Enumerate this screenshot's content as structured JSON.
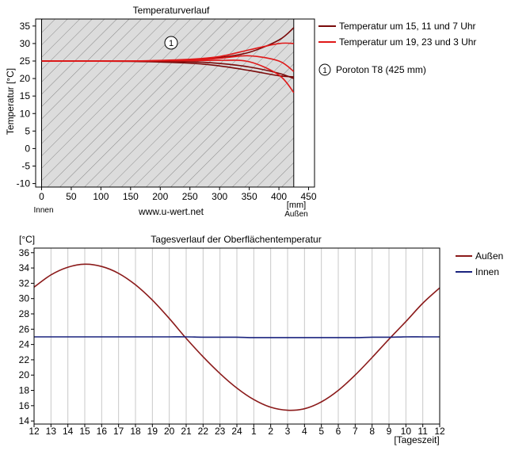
{
  "chart_data": [
    {
      "type": "line",
      "title": "Temperaturverlauf",
      "ylabel": "Temperatur [°C]",
      "x_unit": "[mm]",
      "x_ticks": [
        0,
        50,
        100,
        150,
        200,
        250,
        300,
        350,
        400,
        450
      ],
      "y_ticks": [
        35,
        30,
        25,
        20,
        15,
        10,
        5,
        0,
        -5,
        -10
      ],
      "xlim": [
        -10,
        460
      ],
      "ylim": [
        -11,
        37
      ],
      "inside_label": "Innen",
      "outside_label": "Außen",
      "watermark": "www.u-wert.net",
      "layer": {
        "number": "1",
        "name": "Poroton T8 (425 mm)",
        "from_mm": 0,
        "to_mm": 425
      },
      "legend_placement": "right",
      "series": [
        {
          "name": "Temperatur um 15, 11 und 7 Uhr",
          "color": "#7a0a0a",
          "curves": [
            {
              "x": [
                0,
                150,
                250,
                300,
                350,
                400,
                425
              ],
              "y": [
                25,
                25,
                25.3,
                26,
                27.5,
                31,
                34.5
              ]
            },
            {
              "x": [
                0,
                150,
                250,
                300,
                350,
                400,
                425
              ],
              "y": [
                25,
                24.9,
                24.4,
                23.6,
                22.3,
                20.8,
                20.5
              ]
            },
            {
              "x": [
                0,
                150,
                250,
                300,
                350,
                400,
                425
              ],
              "y": [
                25,
                25,
                24.8,
                24.3,
                23.3,
                21.5,
                20
              ]
            }
          ]
        },
        {
          "name": "Temperatur um 19, 23 und 3 Uhr",
          "color": "#e01818",
          "curves": [
            {
              "x": [
                0,
                150,
                250,
                300,
                350,
                400,
                425
              ],
              "y": [
                25,
                25,
                25.3,
                25.8,
                26.5,
                25,
                22
              ]
            },
            {
              "x": [
                0,
                150,
                250,
                300,
                350,
                400,
                425
              ],
              "y": [
                25,
                25,
                25.1,
                25.2,
                24.8,
                21,
                16
              ]
            },
            {
              "x": [
                0,
                150,
                250,
                300,
                350,
                400,
                425
              ],
              "y": [
                25,
                25,
                25.5,
                26.3,
                28.2,
                30,
                30
              ]
            }
          ]
        }
      ]
    },
    {
      "type": "line",
      "title": "Tagesverlauf der Oberflächentemperatur",
      "ylabel": "[°C]",
      "xlabel": "[Tageszeit]",
      "categories": [
        "12",
        "13",
        "14",
        "15",
        "16",
        "17",
        "18",
        "19",
        "20",
        "21",
        "22",
        "23",
        "24",
        "1",
        "2",
        "3",
        "4",
        "5",
        "6",
        "7",
        "8",
        "9",
        "10",
        "11",
        "12"
      ],
      "y_ticks": [
        36,
        34,
        32,
        30,
        28,
        26,
        24,
        22,
        20,
        18,
        16,
        14
      ],
      "ylim": [
        13.6,
        36.6
      ],
      "grid": true,
      "legend_placement": "right",
      "series": [
        {
          "name": "Außen",
          "color": "#8b1a1a",
          "values": [
            31.5,
            33.1,
            34.1,
            34.5,
            34.2,
            33.3,
            31.8,
            29.8,
            27.4,
            24.8,
            22.4,
            20.2,
            18.3,
            16.8,
            15.8,
            15.4,
            15.6,
            16.5,
            18,
            20,
            22.3,
            24.7,
            27,
            29.4,
            31.4
          ]
        },
        {
          "name": "Innen",
          "color": "#1a237e",
          "values": [
            25,
            25,
            25,
            25,
            25,
            25,
            25,
            25,
            25,
            25,
            24.95,
            24.95,
            24.95,
            24.9,
            24.9,
            24.9,
            24.9,
            24.9,
            24.9,
            24.9,
            24.95,
            24.95,
            25,
            25,
            25
          ]
        }
      ]
    }
  ]
}
